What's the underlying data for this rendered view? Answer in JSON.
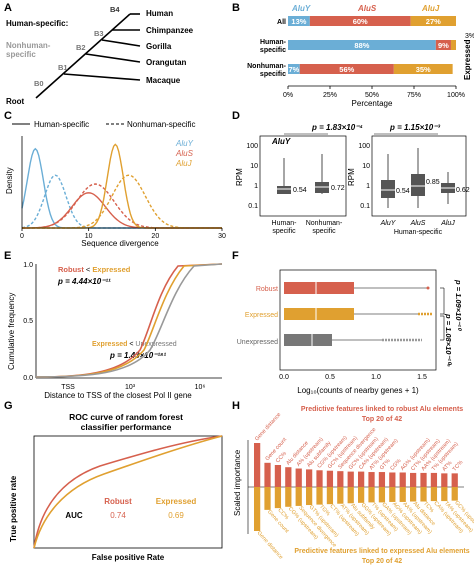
{
  "panels": [
    "A",
    "B",
    "C",
    "D",
    "E",
    "F",
    "G",
    "H"
  ],
  "colors": {
    "aluy": "#6baed6",
    "alus": "#d6604d",
    "aluj": "#e0a030",
    "gray": "#777777",
    "robust": "#d6604d",
    "expressed": "#e0a030"
  },
  "A": {
    "human_specific": "Human-specific:",
    "nonhuman_specific": "Nonhuman-\nspecific:",
    "branches": [
      "B4",
      "B3",
      "B2",
      "B1",
      "B0"
    ],
    "species": [
      "Human",
      "Chimpanzee",
      "Gorilla",
      "Orangutan",
      "Macaque"
    ],
    "root": "Root"
  },
  "B": {
    "legend": [
      "AluY",
      "AluS",
      "AluJ"
    ],
    "xlabel": "Percentage",
    "ylabel": "Expressed",
    "xticks": [
      "0%",
      "25%",
      "50%",
      "75%",
      "100%"
    ],
    "extra": "3%"
  },
  "C": {
    "legend_solid": "Human-specific",
    "legend_dashed": "Nonhuman-specific",
    "series_labels": [
      "AluY",
      "AluS",
      "AluJ"
    ],
    "xlabel": "Sequence divergence",
    "ylabel": "Density",
    "xticks": [
      "0",
      "10",
      "20",
      "30"
    ]
  },
  "D": {
    "p1": "p = 1.83×10⁻⁴",
    "p2": "p = 1.15×10⁻³",
    "aluy": "AluY",
    "ylabel": "RPM",
    "yticks": [
      "100",
      "10",
      "1",
      "0.1"
    ],
    "left_xlabels": [
      "Human-\nspecific",
      "Nonhuman-\nspecific"
    ],
    "left_medians": [
      "0.54",
      "0.72"
    ],
    "right_xlabels": [
      "AluY",
      "AluS",
      "AluJ"
    ],
    "right_medians": [
      "0.54",
      "0.85",
      "0.62"
    ],
    "right_group": "Human-specific"
  },
  "E": {
    "legend1_a": "Robust",
    "legend1_b": "Expressed",
    "p1": "p = 4.44×10⁻¹¹",
    "legend2_a": "Expressed",
    "legend2_b": "Unexpressed",
    "p2": "p = 1.43×10⁻¹⁸¹",
    "ylabel": "Cumulative frequency",
    "xlabel": "Distance to TSS of the closest Pol II gene",
    "xticks": [
      "TSS",
      "10³",
      "10⁶"
    ],
    "yticks": [
      "0.0",
      "0.5",
      "1.0"
    ]
  },
  "F": {
    "rows": [
      "Robust",
      "Expressed",
      "Unexpressed"
    ],
    "xlabel": "Log₁₀(counts of nearby genes + 1)",
    "xticks": [
      "0.0",
      "0.5",
      "1.0",
      "1.5"
    ],
    "p1": "p = 1.09×10⁻¹⁰",
    "p2": "p = 1.08×10⁻¹⁰⁶"
  },
  "G": {
    "title": "ROC curve of random forest\nclassifier performance",
    "ylabel": "True positive rate",
    "xlabel": "False positive Rate",
    "auc_label": "AUC",
    "robust_label": "Robust",
    "expressed_label": "Expressed",
    "robust_auc": "0.74",
    "expressed_auc": "0.69"
  },
  "H": {
    "title_top": "Predictive features linked to robust Alu elements",
    "sub_top": "Top 20 of 42",
    "title_bottom": "Predictive features linked to expressed Alu elements",
    "sub_bottom": "Top 20 of 42",
    "ylabel": "Scaled importance",
    "top_features": [
      "Gene distance",
      "Gene count",
      "CC%",
      "Alu distance",
      "A% (upstream)",
      "Alu subfamily",
      "CG% (upstream)",
      "GC% (upstream)",
      "Sequence divergence",
      "GC% (upstream)",
      "CA% (upstream)",
      "AT% (upstream)",
      "GT%",
      "CG%",
      "AG% (upstream)",
      "CT% (upstream)",
      "AA% (upstream)",
      "T% (upstream)",
      "AT%",
      "TC%"
    ],
    "top_values": [
      1.0,
      0.55,
      0.5,
      0.45,
      0.42,
      0.4,
      0.38,
      0.37,
      0.36,
      0.35,
      0.35,
      0.34,
      0.34,
      0.33,
      0.33,
      0.32,
      0.32,
      0.32,
      0.31,
      0.31
    ],
    "bottom_features": [
      "Gene distance",
      "Gene count",
      "CC%",
      "CG% (upstream)",
      "Sequence divergence",
      "GT% (upstream)",
      "TG%",
      "CT% (upstream)",
      "AT% (upstream)",
      "Alu subfamily",
      "GG% (upstream)",
      "T% (upstream)",
      "GA% (upstream)",
      "AG% (upstream)",
      "AA% (upstream)",
      "Alu distance",
      "TC%",
      "CA% (upstream)",
      "TA% (upstream)",
      "GC% (upstream)"
    ],
    "bottom_values": [
      1.0,
      0.52,
      0.48,
      0.45,
      0.43,
      0.41,
      0.4,
      0.39,
      0.38,
      0.37,
      0.36,
      0.35,
      0.35,
      0.34,
      0.34,
      0.33,
      0.33,
      0.32,
      0.32,
      0.31
    ]
  },
  "chart_data": [
    {
      "type": "bar",
      "panel": "B",
      "stacked": true,
      "categories": [
        "All",
        "Human-specific",
        "Nonhuman-specific"
      ],
      "series": [
        {
          "name": "AluY",
          "values": [
            13,
            88,
            7
          ]
        },
        {
          "name": "AluS",
          "values": [
            60,
            9,
            56
          ]
        },
        {
          "name": "AluJ",
          "values": [
            27,
            3,
            35
          ]
        }
      ],
      "labels": [
        [
          "13%",
          "60%",
          "27%"
        ],
        [
          "88%",
          "9%",
          ""
        ],
        [
          "7%",
          "56%",
          "35%"
        ]
      ],
      "xlabel": "Percentage",
      "xlim": [
        0,
        100
      ]
    },
    {
      "type": "line",
      "panel": "C",
      "xlabel": "Sequence divergence",
      "ylabel": "Density",
      "xlim": [
        0,
        30
      ],
      "series": [
        {
          "name": "AluY",
          "style": "solid",
          "peak": 2,
          "height": 0.9,
          "width": 1.2
        },
        {
          "name": "AluY",
          "style": "dashed",
          "peak": 5,
          "height": 0.6,
          "width": 1.6
        },
        {
          "name": "AluS",
          "style": "solid",
          "peak": 10,
          "height": 0.4,
          "width": 2.5
        },
        {
          "name": "AluS",
          "style": "dashed",
          "peak": 11,
          "height": 0.5,
          "width": 2.8
        },
        {
          "name": "AluJ",
          "style": "solid",
          "peak": 14,
          "height": 0.95,
          "width": 1.2
        },
        {
          "name": "AluJ",
          "style": "dashed",
          "peak": 16,
          "height": 0.6,
          "width": 2.5
        }
      ]
    },
    {
      "type": "box",
      "panel": "D",
      "ylabel": "RPM",
      "yscale": "log",
      "groups": [
        {
          "name": "Human-specific",
          "median": 0.54
        },
        {
          "name": "Nonhuman-specific",
          "median": 0.72
        },
        {
          "name": "AluY",
          "median": 0.54
        },
        {
          "name": "AluS",
          "median": 0.85
        },
        {
          "name": "AluJ",
          "median": 0.62
        }
      ]
    },
    {
      "type": "line",
      "panel": "E",
      "xlabel": "Distance to TSS of the closest Pol II gene",
      "ylabel": "Cumulative frequency",
      "series": [
        {
          "name": "Robust"
        },
        {
          "name": "Expressed"
        },
        {
          "name": "Unexpressed"
        }
      ]
    },
    {
      "type": "box",
      "panel": "F",
      "xlabel": "Log₁₀(counts of nearby genes + 1)",
      "groups": [
        {
          "name": "Robust",
          "q1": 0.0,
          "median": 0.3,
          "q3": 0.7,
          "whisker_hi": 1.7
        },
        {
          "name": "Expressed",
          "q1": 0.0,
          "median": 0.3,
          "q3": 0.7,
          "whisker_hi": 1.7
        },
        {
          "name": "Unexpressed",
          "q1": 0.0,
          "median": 0.3,
          "q3": 0.5,
          "whisker_hi": 1.0
        }
      ]
    },
    {
      "type": "line",
      "panel": "G",
      "xlabel": "False positive Rate",
      "ylabel": "True positive rate",
      "series": [
        {
          "name": "Robust",
          "auc": 0.74
        },
        {
          "name": "Expressed",
          "auc": 0.69
        }
      ]
    },
    {
      "type": "bar",
      "panel": "H",
      "ylabel": "Scaled importance"
    }
  ]
}
